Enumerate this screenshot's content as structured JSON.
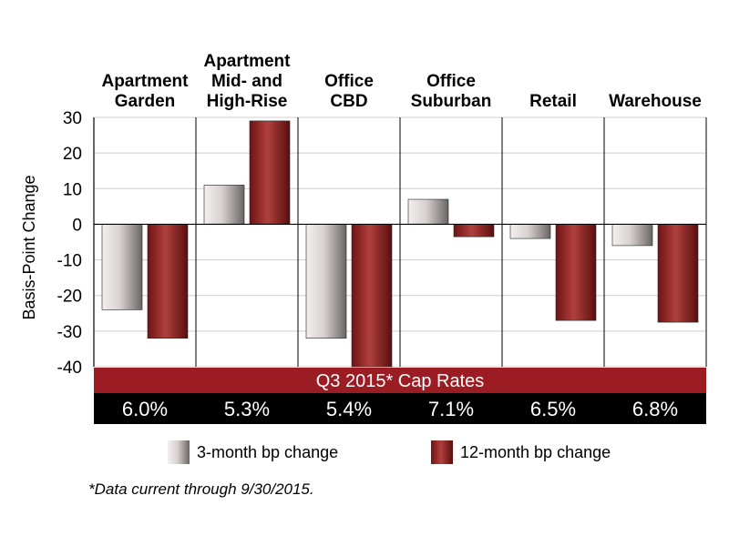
{
  "chart_data": {
    "type": "bar",
    "categories": [
      [
        "Apartment",
        "Garden"
      ],
      [
        "Apartment",
        "Mid- and",
        "High-Rise"
      ],
      [
        "Office",
        "CBD"
      ],
      [
        "Office",
        "Suburban"
      ],
      [
        "Retail"
      ],
      [
        "Warehouse"
      ]
    ],
    "series": [
      {
        "name": "3-month bp change",
        "values": [
          -24,
          11,
          -32,
          7,
          -4,
          -6
        ],
        "color": "#d6d0cf"
      },
      {
        "name": "12-month bp change",
        "values": [
          -32,
          29,
          -40,
          -3.5,
          -27,
          -27.5
        ],
        "color": "#a52a2a"
      }
    ],
    "ylabel": "Basis-Point Change",
    "ylim": [
      -40,
      30
    ],
    "yticks": [
      "30",
      "20",
      "10",
      "0",
      "-10",
      "-20",
      "-30",
      "-40"
    ],
    "ytick_values": [
      30,
      20,
      10,
      0,
      -10,
      -20,
      -30,
      -40
    ],
    "grid": true,
    "banner": "Q3 2015* Cap Rates",
    "cap_rates": [
      "6.0%",
      "5.3%",
      "5.4%",
      "7.1%",
      "6.5%",
      "6.8%"
    ],
    "legend_position": "bottom"
  },
  "colors": {
    "banner": "#9b1c22",
    "cap_row": "#000000"
  },
  "footnote": "*Data current through 9/30/2015."
}
